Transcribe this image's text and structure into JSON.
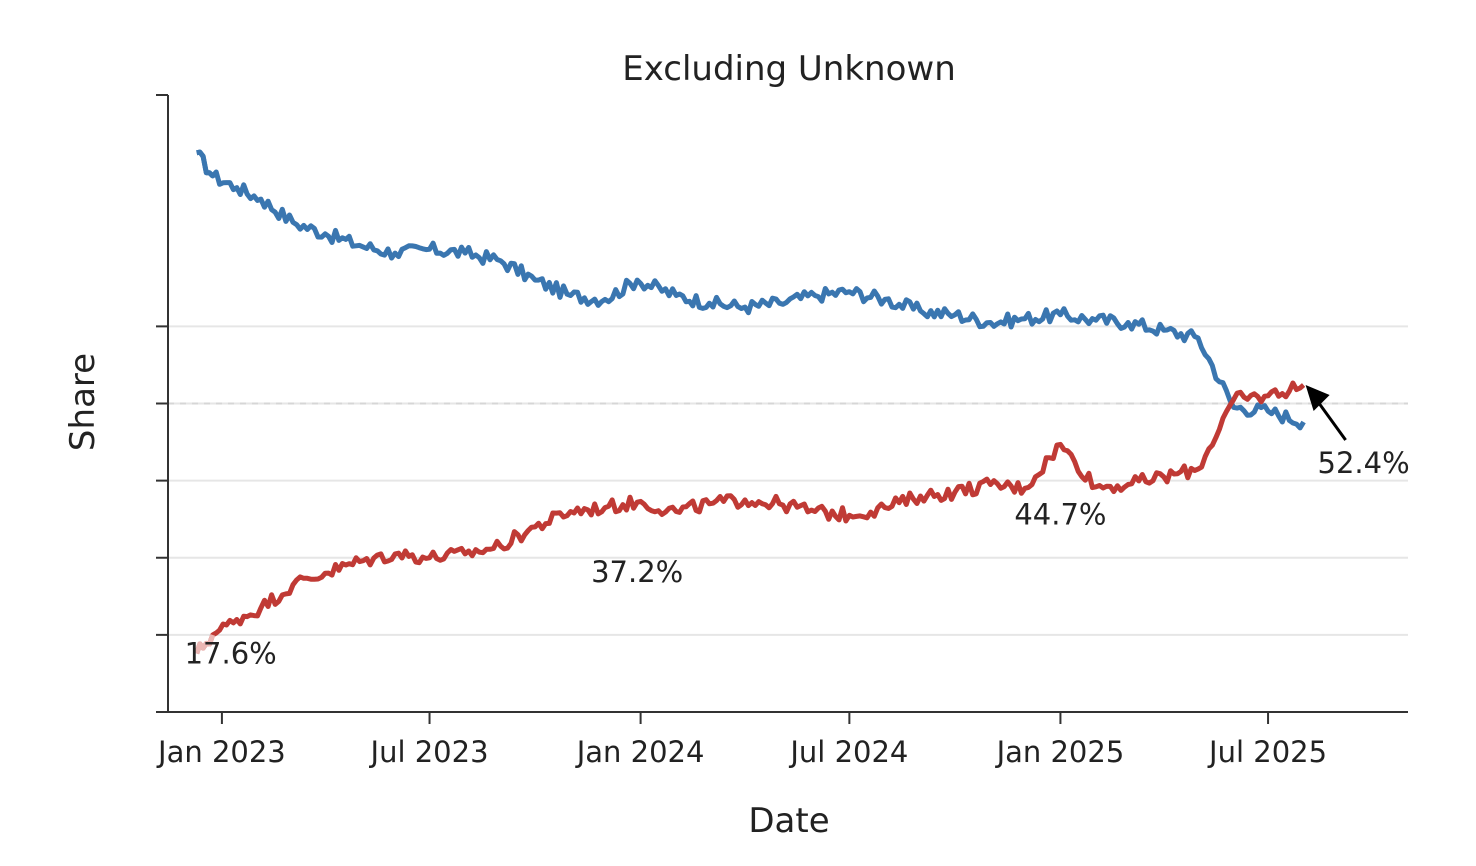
{
  "chart_data": {
    "type": "line",
    "title": "Excluding Unknown",
    "xlabel": "Date",
    "ylabel": "Share",
    "x_range": [
      "2022-11-15",
      "2025-10-31"
    ],
    "x_ticks": [
      {
        "date": "2023-01-01",
        "label": "Jan 2023"
      },
      {
        "date": "2023-07-01",
        "label": "Jul 2023"
      },
      {
        "date": "2024-01-01",
        "label": "Jan 2024"
      },
      {
        "date": "2024-07-01",
        "label": "Jul 2024"
      },
      {
        "date": "2025-01-01",
        "label": "Jan 2025"
      },
      {
        "date": "2025-07-01",
        "label": "Jul 2025"
      }
    ],
    "ylim": [
      0.1,
      0.9
    ],
    "y_ticks": [
      0.1,
      0.2,
      0.3,
      0.4,
      0.5,
      0.6
    ],
    "y_tick_labels_visible": false,
    "grid": "horizontal",
    "reference_line": 0.5,
    "legend": "none",
    "series": [
      {
        "color": "#3a76b0",
        "start_color": "#3a76b0",
        "points": [
          [
            "2022-12-10",
            0.825
          ],
          [
            "2022-12-24",
            0.795
          ],
          [
            "2023-01-14",
            0.78
          ],
          [
            "2023-02-04",
            0.765
          ],
          [
            "2023-03-04",
            0.735
          ],
          [
            "2023-04-01",
            0.72
          ],
          [
            "2023-05-01",
            0.705
          ],
          [
            "2023-06-01",
            0.695
          ],
          [
            "2023-07-01",
            0.7
          ],
          [
            "2023-08-01",
            0.695
          ],
          [
            "2023-09-01",
            0.685
          ],
          [
            "2023-10-01",
            0.66
          ],
          [
            "2023-11-01",
            0.64
          ],
          [
            "2023-12-01",
            0.635
          ],
          [
            "2023-12-29",
            0.66
          ],
          [
            "2024-02-01",
            0.64
          ],
          [
            "2024-03-01",
            0.63
          ],
          [
            "2024-04-01",
            0.625
          ],
          [
            "2024-05-01",
            0.63
          ],
          [
            "2024-06-01",
            0.64
          ],
          [
            "2024-07-01",
            0.645
          ],
          [
            "2024-08-01",
            0.635
          ],
          [
            "2024-09-01",
            0.62
          ],
          [
            "2024-10-01",
            0.615
          ],
          [
            "2024-11-01",
            0.605
          ],
          [
            "2024-12-01",
            0.61
          ],
          [
            "2025-01-01",
            0.615
          ],
          [
            "2025-02-01",
            0.608
          ],
          [
            "2025-03-01",
            0.605
          ],
          [
            "2025-04-01",
            0.595
          ],
          [
            "2025-05-01",
            0.585
          ],
          [
            "2025-06-01",
            0.495
          ],
          [
            "2025-07-01",
            0.49
          ],
          [
            "2025-08-01",
            0.476
          ]
        ]
      },
      {
        "color": "#c03a35",
        "start_color": "#ebb7b4",
        "points": [
          [
            "2022-12-10",
            0.176
          ],
          [
            "2022-12-24",
            0.2
          ],
          [
            "2023-01-14",
            0.22
          ],
          [
            "2023-02-04",
            0.235
          ],
          [
            "2023-03-04",
            0.265
          ],
          [
            "2023-04-01",
            0.28
          ],
          [
            "2023-05-01",
            0.295
          ],
          [
            "2023-06-01",
            0.305
          ],
          [
            "2023-07-01",
            0.3
          ],
          [
            "2023-08-01",
            0.305
          ],
          [
            "2023-09-01",
            0.315
          ],
          [
            "2023-10-01",
            0.34
          ],
          [
            "2023-11-01",
            0.36
          ],
          [
            "2023-12-01",
            0.365
          ],
          [
            "2023-12-29",
            0.372
          ],
          [
            "2024-02-01",
            0.36
          ],
          [
            "2024-03-01",
            0.37
          ],
          [
            "2024-04-01",
            0.375
          ],
          [
            "2024-05-01",
            0.37
          ],
          [
            "2024-06-01",
            0.36
          ],
          [
            "2024-07-01",
            0.355
          ],
          [
            "2024-08-01",
            0.365
          ],
          [
            "2024-09-01",
            0.38
          ],
          [
            "2024-10-01",
            0.385
          ],
          [
            "2024-11-01",
            0.395
          ],
          [
            "2024-12-01",
            0.39
          ],
          [
            "2025-01-01",
            0.447
          ],
          [
            "2025-02-01",
            0.392
          ],
          [
            "2025-03-01",
            0.395
          ],
          [
            "2025-04-01",
            0.405
          ],
          [
            "2025-05-01",
            0.415
          ],
          [
            "2025-06-01",
            0.505
          ],
          [
            "2025-07-01",
            0.51
          ],
          [
            "2025-08-01",
            0.524
          ]
        ]
      }
    ],
    "annotations": [
      {
        "text": "17.6%",
        "date": "2022-12-10",
        "value": 0.176
      },
      {
        "text": "37.2%",
        "date": "2023-12-29",
        "value": 0.372
      },
      {
        "text": "44.7%",
        "date": "2025-01-01",
        "value": 0.447
      },
      {
        "text": "52.4%",
        "date": "2025-08-01",
        "value": 0.524,
        "arrow": true
      }
    ]
  }
}
